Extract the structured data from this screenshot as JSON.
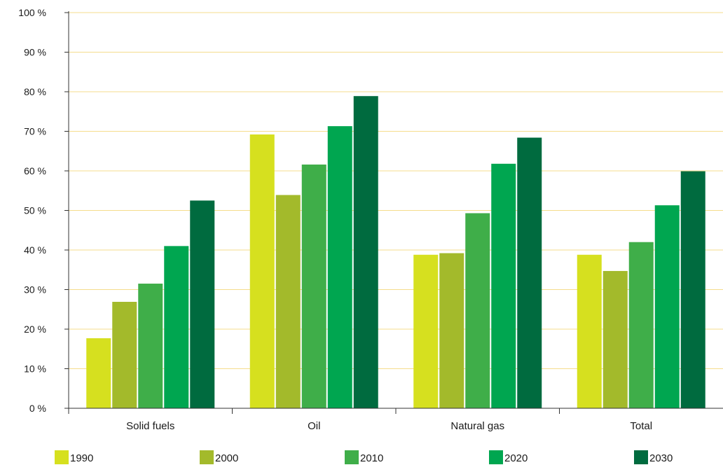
{
  "chart_data": {
    "type": "bar",
    "title": "",
    "xlabel": "",
    "ylabel": "",
    "categories": [
      "Solid fuels",
      "Oil",
      "Natural gas",
      "Total"
    ],
    "series": [
      {
        "name": "1990",
        "color": "#d6e01f",
        "values": [
          17.7,
          69.2,
          38.8,
          38.8
        ]
      },
      {
        "name": "2000",
        "color": "#a3ba2b",
        "values": [
          26.9,
          53.9,
          39.2,
          34.7
        ]
      },
      {
        "name": "2010",
        "color": "#3fae49",
        "values": [
          31.5,
          61.6,
          49.3,
          42.0
        ]
      },
      {
        "name": "2020",
        "color": "#00a650",
        "values": [
          41.0,
          71.3,
          61.8,
          51.3
        ]
      },
      {
        "name": "2030",
        "color": "#006b3f",
        "values": [
          52.5,
          78.9,
          68.4,
          59.9
        ]
      }
    ],
    "ylim": [
      0,
      100
    ],
    "yticks": [
      0,
      10,
      20,
      30,
      40,
      50,
      60,
      70,
      80,
      90,
      100
    ],
    "ytick_labels": [
      "0 %",
      "10 %",
      "20 %",
      "30 %",
      "40 %",
      "50 %",
      "60 %",
      "70 %",
      "80 %",
      "90 %",
      "100 %"
    ],
    "grid": true,
    "grid_color": "#f5dc8c",
    "legend_position": "bottom"
  }
}
